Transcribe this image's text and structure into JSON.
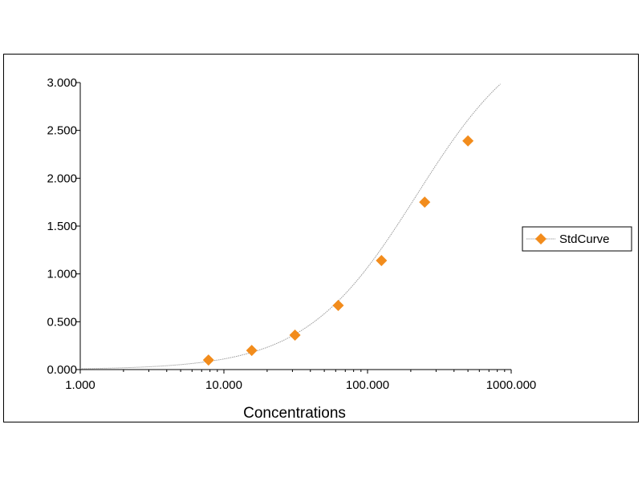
{
  "chart_data": {
    "type": "scatter",
    "xlabel": "Concentrations",
    "ylabel": "",
    "x_scale": "log",
    "xlim": [
      1,
      1000
    ],
    "ylim": [
      0,
      3
    ],
    "x_ticks": [
      "1.000",
      "10.000",
      "100.000",
      "1000.000"
    ],
    "x_tick_values": [
      1,
      10,
      100,
      1000
    ],
    "y_ticks": [
      "0.000",
      "0.500",
      "1.000",
      "1.500",
      "2.000",
      "2.500",
      "3.000"
    ],
    "y_tick_values": [
      0,
      0.5,
      1,
      1.5,
      2,
      2.5,
      3
    ],
    "grid": false,
    "legend_position": "right",
    "series": [
      {
        "name": "StdCurve",
        "color": "#f28c1c",
        "marker": "diamond",
        "trendline": "fitted sigmoid curve",
        "x": [
          7.8125,
          15.625,
          31.25,
          62.5,
          125,
          250,
          500
        ],
        "y": [
          0.1,
          0.2,
          0.36,
          0.67,
          1.14,
          1.75,
          2.39
        ]
      }
    ]
  }
}
